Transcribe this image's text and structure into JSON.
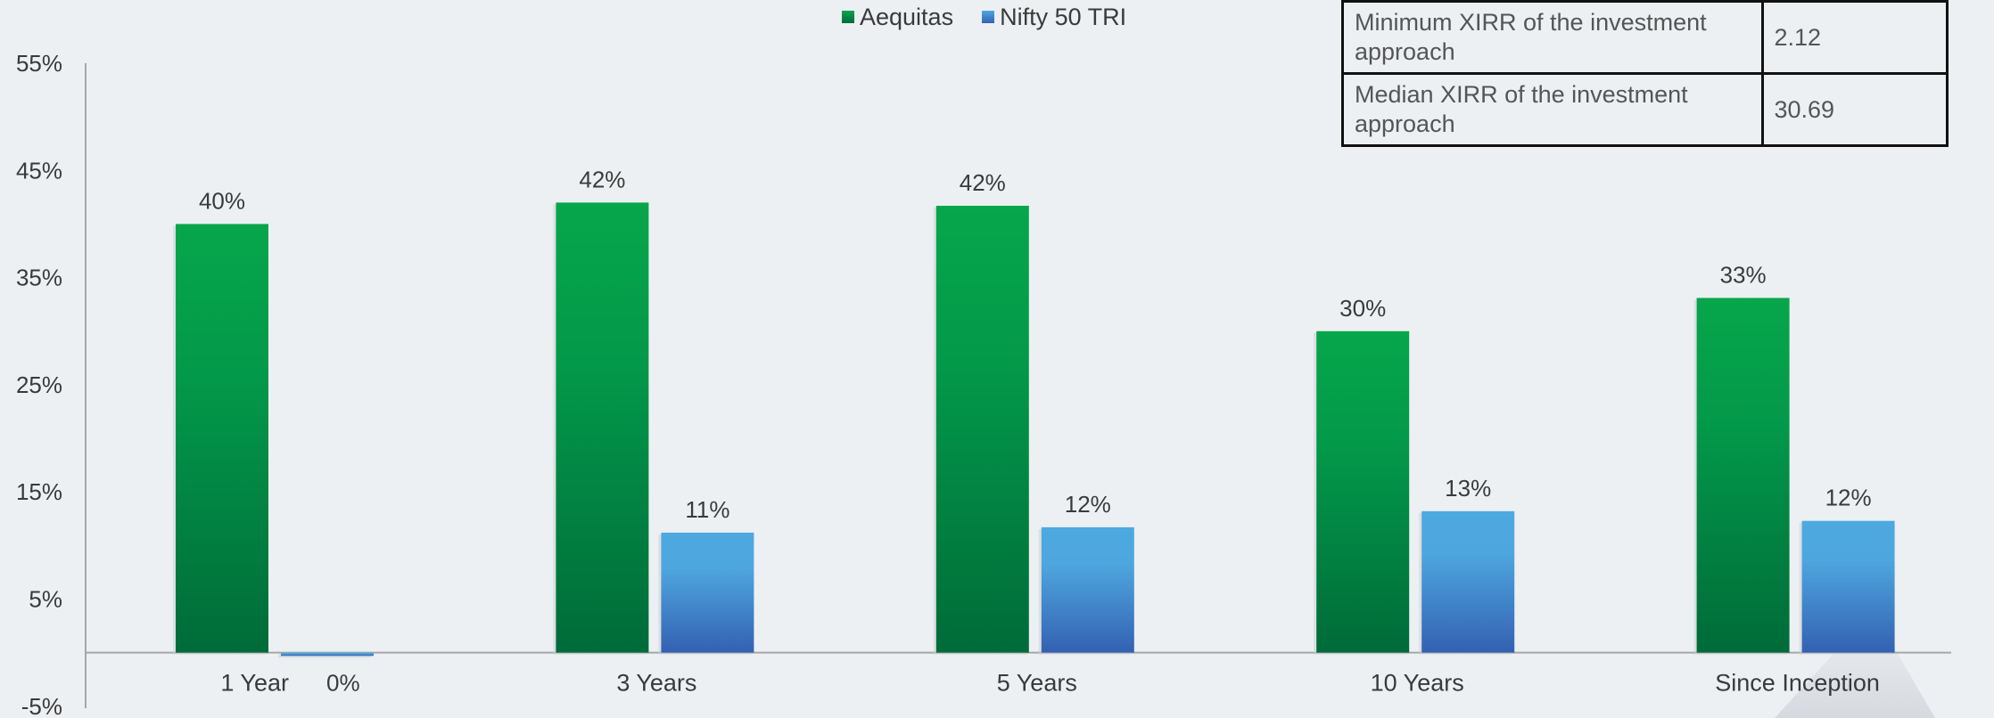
{
  "legend": {
    "series1": "Aequitas",
    "series2": "Nifty 50 TRI"
  },
  "table": {
    "rows": [
      {
        "label": "Minimum XIRR of the investment approach",
        "value": "2.12"
      },
      {
        "label": "Median XIRR of the investment approach",
        "value": "30.69"
      }
    ]
  },
  "colors": {
    "aequitas_top": "#07a64b",
    "aequitas_bottom": "#006b39",
    "nifty_top": "#4da9e0",
    "nifty_bottom": "#3361b2",
    "axis": "#a6a6a6",
    "background": "#edf0f3"
  },
  "chart_data": {
    "type": "bar",
    "categories": [
      "1 Year",
      "3 Years",
      "5 Years",
      "10 Years",
      "Since Inception"
    ],
    "series": [
      {
        "name": "Aequitas",
        "values": [
          40,
          42,
          41.7,
          30,
          33.1
        ],
        "labels": [
          "40%",
          "42%",
          "42%",
          "30%",
          "33%"
        ]
      },
      {
        "name": "Nifty 50 TRI",
        "values": [
          -0.3,
          11.2,
          11.7,
          13.2,
          12.3
        ],
        "labels": [
          "0%",
          "11%",
          "12%",
          "13%",
          "12%"
        ]
      }
    ],
    "yticks": [
      55,
      45,
      35,
      25,
      15,
      5,
      -5
    ],
    "ytick_labels": [
      "55%",
      "45%",
      "35%",
      "25%",
      "15%",
      "5%",
      "-5%"
    ],
    "ylim": [
      -5,
      55
    ],
    "title": "",
    "xlabel": "",
    "ylabel": "",
    "grid": false,
    "legend_position": "top-center"
  }
}
